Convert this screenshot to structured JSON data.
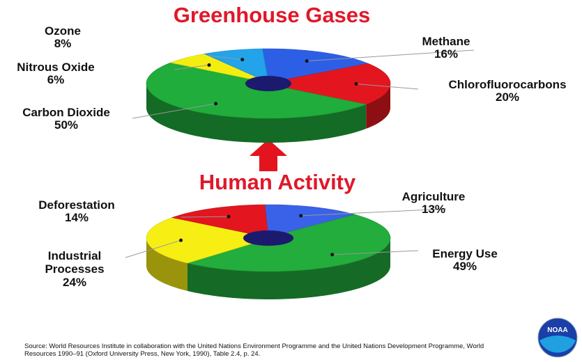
{
  "chart_data": [
    {
      "type": "pie",
      "title": "Greenhouse Gases",
      "categories": [
        "Methane",
        "Chlorofluorocarbons",
        "Carbon Dioxide",
        "Nitrous Oxide",
        "Ozone"
      ],
      "values": [
        16,
        20,
        50,
        6,
        8
      ],
      "value_labels": [
        "16%",
        "20%",
        "50%",
        "6%",
        "8%"
      ],
      "colors": [
        "#2d5fe6",
        "#e3161f",
        "#20ad3b",
        "#f4ee10",
        "#22a3ea"
      ]
    },
    {
      "type": "pie",
      "title": "Human Activity",
      "categories": [
        "Agriculture",
        "Energy Use",
        "Industrial Processes",
        "Deforestation"
      ],
      "values": [
        13,
        49,
        24,
        14
      ],
      "value_labels": [
        "13%",
        "49%",
        "24%",
        "14%"
      ],
      "colors": [
        "#3a62e8",
        "#22ad3c",
        "#f7ef14",
        "#e3161f"
      ]
    }
  ],
  "source": "Source: World Resources Institute in collaboration with the United Nations Environment Programme and the United Nations Development Programme, World Resources 1990–91 (Oxford University Press, New York, 1990), Table 2.4, p. 24.",
  "logo": "NOAA"
}
